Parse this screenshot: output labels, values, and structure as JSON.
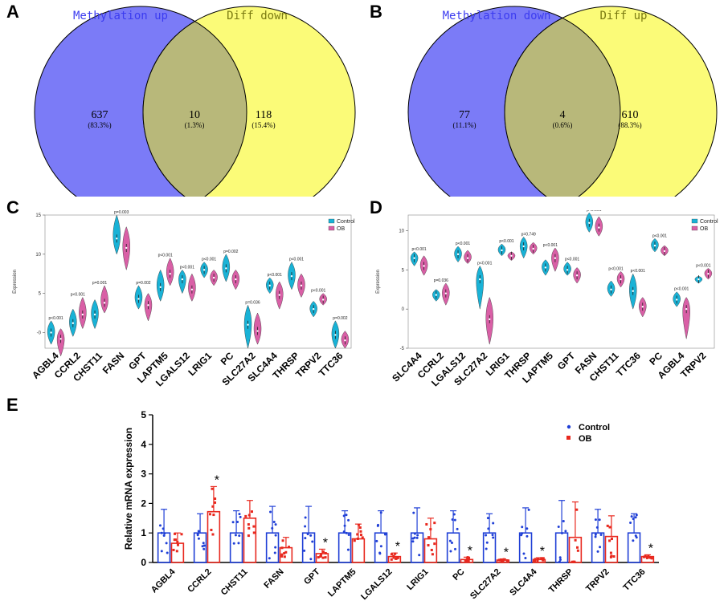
{
  "panels": {
    "a": "A",
    "b": "B",
    "c": "C",
    "d": "D",
    "e": "E"
  },
  "chart_data": [
    {
      "type": "venn",
      "panel": "A",
      "set_labels": [
        "Methylation up",
        "Diff down"
      ],
      "colors": [
        "#7b7bf7",
        "#fbfb78"
      ],
      "label_colors": [
        "#3c3cf0",
        "#7a7a10"
      ],
      "regions": [
        {
          "count": "637",
          "percent": "(83.3%)"
        },
        {
          "count": "10",
          "percent": "(1.3%)"
        },
        {
          "count": "118",
          "percent": "(15.4%)"
        }
      ]
    },
    {
      "type": "venn",
      "panel": "B",
      "set_labels": [
        "Methylation down",
        "Diff up"
      ],
      "colors": [
        "#7b7bf7",
        "#fbfb78"
      ],
      "label_colors": [
        "#3c3cf0",
        "#7a7a10"
      ],
      "regions": [
        {
          "count": "77",
          "percent": "(11.1%)"
        },
        {
          "count": "4",
          "percent": "(0.6%)"
        },
        {
          "count": "610",
          "percent": "(88.3%)"
        }
      ]
    },
    {
      "type": "violin",
      "panel": "C",
      "ylabel": "Expression",
      "ylim": [
        -2,
        15
      ],
      "yticks": [
        "-0",
        "5",
        "10",
        "15"
      ],
      "legend": [
        "Control",
        "OB"
      ],
      "colors": {
        "control": "#19b2d6",
        "ob": "#d95fa6"
      },
      "genes": [
        "AGBL4",
        "CCRL2",
        "CHST11",
        "FASN",
        "GPT",
        "LAPTM5",
        "LGALS12",
        "LRIG1",
        "PC",
        "SLC27A2",
        "SLC4A4",
        "THRSP",
        "TRPV2",
        "TTC36"
      ],
      "pvalues": [
        "p<0.001",
        "p<0.001",
        "p=0.001",
        "p=0.003",
        "p=0.002",
        "p<0.001",
        "p<0.001",
        "p<0.001",
        "p=0.002",
        "p=0.036",
        "p<0.001",
        "p<0.001",
        "p<0.001",
        "p=0.002"
      ],
      "control_median": [
        0,
        1.2,
        2.3,
        12.0,
        4.3,
        5.8,
        6.8,
        8.0,
        8.2,
        1.0,
        6.0,
        7.2,
        3.0,
        -0.3
      ],
      "ob_median": [
        -0.8,
        2.3,
        3.8,
        10.8,
        3.5,
        7.5,
        5.5,
        7.0,
        6.8,
        0.2,
        4.8,
        6.0,
        4.2,
        -1.0
      ],
      "control_range": [
        [
          -1.5,
          1.5
        ],
        [
          -0.5,
          3.0
        ],
        [
          0.5,
          4.2
        ],
        [
          10,
          15
        ],
        [
          3,
          6
        ],
        [
          4,
          8
        ],
        [
          5,
          8
        ],
        [
          7,
          9
        ],
        [
          6.5,
          10
        ],
        [
          -2,
          3.5
        ],
        [
          5,
          7
        ],
        [
          5.5,
          9
        ],
        [
          2,
          4
        ],
        [
          -2,
          1.5
        ]
      ],
      "ob_range": [
        [
          -3,
          0.5
        ],
        [
          0.5,
          4.5
        ],
        [
          2.5,
          6
        ],
        [
          8,
          13.5
        ],
        [
          1.5,
          5
        ],
        [
          6,
          9.5
        ],
        [
          4,
          7.5
        ],
        [
          6,
          8
        ],
        [
          5.5,
          8
        ],
        [
          -1.5,
          2.5
        ],
        [
          3,
          6.5
        ],
        [
          4.5,
          7.5
        ],
        [
          3.5,
          5
        ],
        [
          -2,
          0.2
        ]
      ]
    },
    {
      "type": "violin",
      "panel": "D",
      "ylabel": "Expression",
      "ylim": [
        -5,
        12
      ],
      "yticks": [
        "-5",
        "0",
        "5",
        "10"
      ],
      "legend": [
        "Control",
        "OB"
      ],
      "colors": {
        "control": "#19b2d6",
        "ob": "#d95fa6"
      },
      "genes": [
        "SLC4A4",
        "CCRL2",
        "LGALS12",
        "SLC27A2",
        "LRIG1",
        "THRSP",
        "LAPTM5",
        "GPT",
        "FASN",
        "CHST11",
        "TTC36",
        "PC",
        "AGBL4",
        "TRPV2"
      ],
      "pvalues": [
        "p<0.001",
        "p=0.036",
        "p<0.001",
        "p<0.001",
        "p<0.001",
        "p=0.749",
        "p<0.001",
        "p<0.001",
        "p<0.001",
        "p<0.001",
        "p<0.001",
        "p<0.001",
        "p<0.001",
        "p<0.001"
      ],
      "control_median": [
        6.5,
        1.8,
        7.0,
        3.8,
        7.5,
        8.0,
        5.3,
        5.0,
        11.0,
        2.5,
        2.3,
        8.1,
        1.2,
        3.8
      ],
      "ob_median": [
        5.5,
        2.0,
        6.5,
        -1.3,
        6.8,
        7.7,
        6.5,
        4.3,
        10.4,
        3.8,
        0.3,
        7.4,
        0.0,
        4.5
      ],
      "control_range": [
        [
          5.5,
          7.3
        ],
        [
          1,
          2.5
        ],
        [
          6,
          8
        ],
        [
          0,
          5.5
        ],
        [
          6.8,
          8.3
        ],
        [
          6.5,
          9.2
        ],
        [
          4.3,
          6.3
        ],
        [
          4.3,
          6
        ],
        [
          9.8,
          12.3
        ],
        [
          1.6,
          3.6
        ],
        [
          0,
          4.5
        ],
        [
          7.3,
          9
        ],
        [
          0.3,
          2.2
        ],
        [
          3.3,
          4.2
        ]
      ],
      "ob_range": [
        [
          4.3,
          6.8
        ],
        [
          0.5,
          3.3
        ],
        [
          5.8,
          7.5
        ],
        [
          -4.5,
          1.5
        ],
        [
          6.2,
          7.3
        ],
        [
          7,
          8.5
        ],
        [
          4.8,
          7.8
        ],
        [
          3.3,
          5.3
        ],
        [
          9.3,
          11.8
        ],
        [
          2.8,
          4.8
        ],
        [
          -1,
          1.5
        ],
        [
          6.8,
          8.1
        ],
        [
          -3.8,
          1.5
        ],
        [
          3.8,
          5.2
        ]
      ]
    },
    {
      "type": "bar",
      "panel": "E",
      "ylabel": "Relative mRNA expression",
      "ylim": [
        0,
        5
      ],
      "yticks": [
        "0",
        "1",
        "2",
        "3",
        "4",
        "5"
      ],
      "legend": [
        "Control",
        "OB"
      ],
      "colors": {
        "control": "#1f3fd6",
        "ob": "#e8281e"
      },
      "categories": [
        "AGBL4",
        "CCRL2",
        "CHST11",
        "FASN",
        "GPT",
        "LAPTM5",
        "LGALS12",
        "LRIG1",
        "PC",
        "SLC27A2",
        "SLC4A4",
        "THRSP",
        "TRPV2",
        "TTC36"
      ],
      "series": [
        {
          "name": "Control",
          "values": [
            1,
            1,
            1,
            1,
            1,
            1,
            1,
            1,
            1,
            1,
            1,
            1,
            1,
            1
          ],
          "errors": [
            0.8,
            0.65,
            0.75,
            0.9,
            0.9,
            0.75,
            0.75,
            0.85,
            0.75,
            0.65,
            0.85,
            1.1,
            0.8,
            0.65
          ]
        },
        {
          "name": "OB",
          "values": [
            0.65,
            1.72,
            1.5,
            0.5,
            0.3,
            0.8,
            0.2,
            0.8,
            0.1,
            0.08,
            0.1,
            0.85,
            0.88,
            0.2
          ],
          "errors": [
            0.35,
            0.85,
            0.6,
            0.35,
            0.15,
            0.5,
            0.12,
            0.7,
            0.08,
            0.04,
            0.06,
            1.2,
            0.7,
            0.06
          ]
        }
      ],
      "significance": [
        "",
        "*",
        "",
        "",
        "*",
        "",
        "*",
        "",
        "*",
        "*",
        "*",
        "",
        "",
        "*"
      ]
    }
  ]
}
